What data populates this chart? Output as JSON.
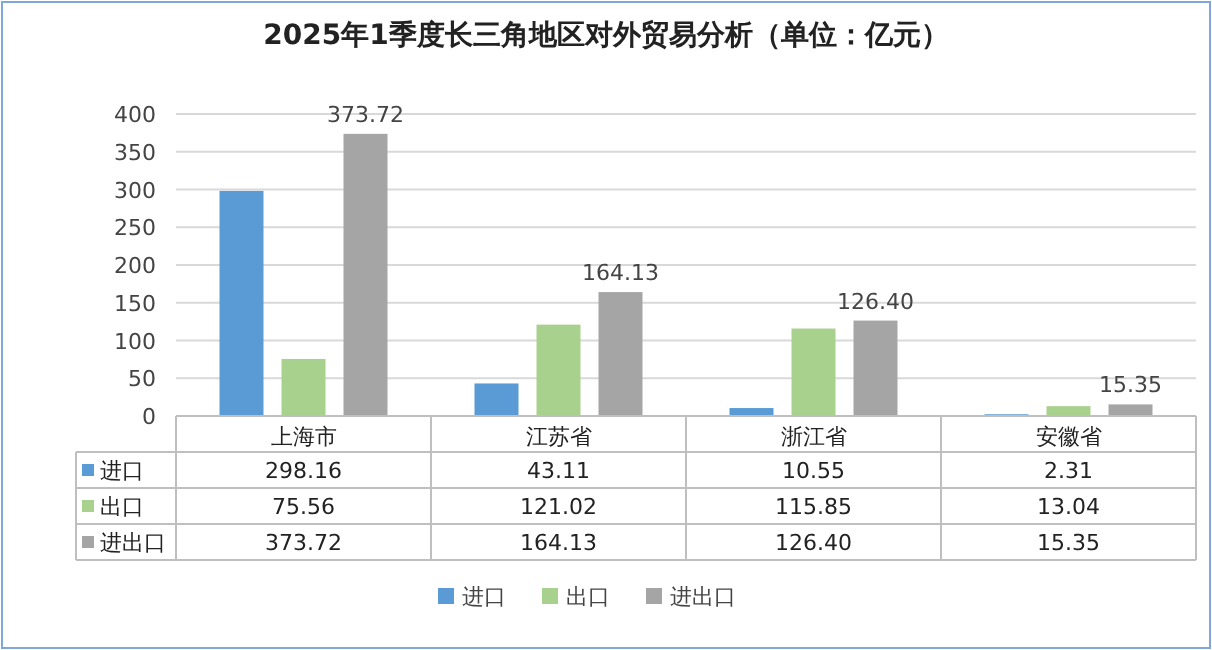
{
  "chart_data": {
    "type": "bar",
    "title": "2025年1季度长三角地区对外贸易分析（单位：亿元）",
    "categories": [
      "上海市",
      "江苏省",
      "浙江省",
      "安徽省"
    ],
    "series": [
      {
        "name": "进口",
        "color": "#5b9bd5",
        "values": [
          298.16,
          43.11,
          10.55,
          2.31
        ],
        "value_labels": [
          "298.16",
          "43.11",
          "10.55",
          "2.31"
        ]
      },
      {
        "name": "出口",
        "color": "#a9d18e",
        "values": [
          75.56,
          121.02,
          115.85,
          13.04
        ],
        "value_labels": [
          "75.56",
          "121.02",
          "115.85",
          "13.04"
        ]
      },
      {
        "name": "进出口",
        "color": "#a5a5a5",
        "values": [
          373.72,
          164.13,
          126.4,
          15.35
        ],
        "value_labels": [
          "373.72",
          "164.13",
          "126.40",
          "15.35"
        ],
        "data_labels": true
      }
    ],
    "ylim": [
      0,
      400
    ],
    "yticks": [
      0,
      50,
      100,
      150,
      200,
      250,
      300,
      350,
      400
    ],
    "grid": "y",
    "legend": "bottom"
  }
}
